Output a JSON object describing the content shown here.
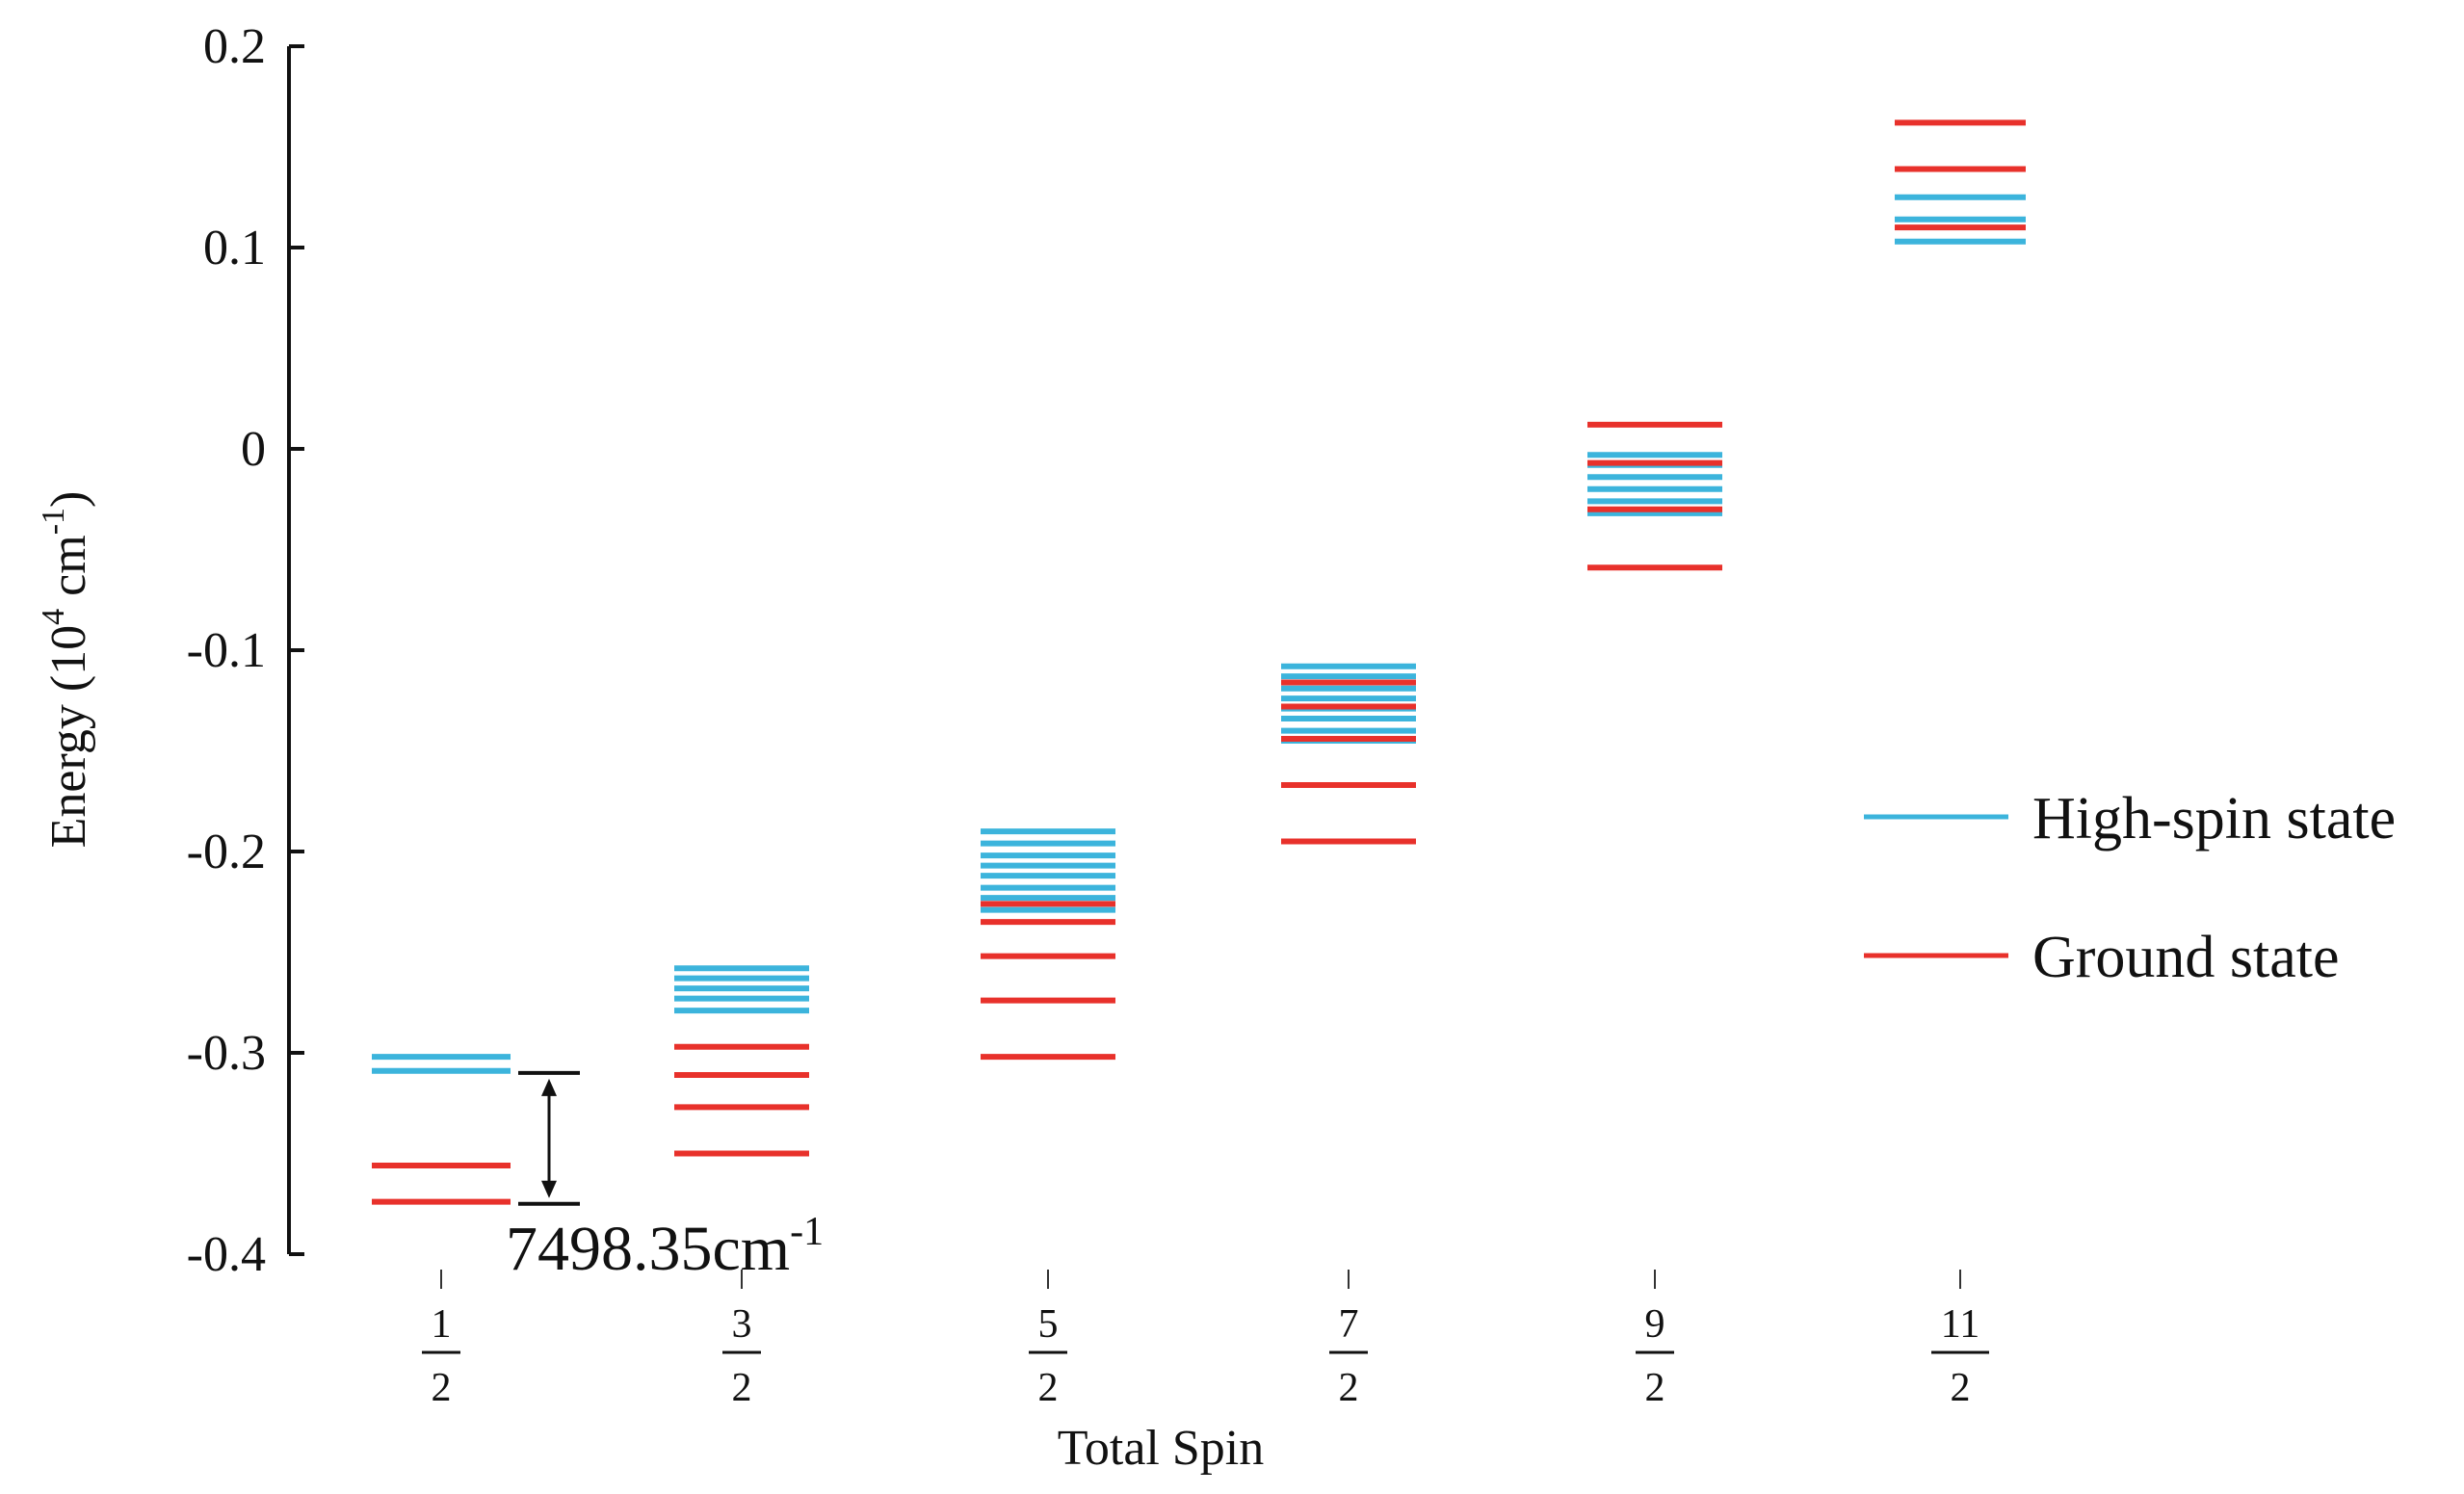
{
  "chart_data": {
    "type": "energy-level-diagram",
    "ylabel": "Energy (10",
    "ylabel_sup1": "4",
    "ylabel_mid": " cm",
    "ylabel_sup2": "-1",
    "ylabel_end": ")",
    "xlabel": "Total Spin",
    "ylim": [
      -0.4,
      0.2
    ],
    "yticks": [
      {
        "value": 0.2,
        "label": "0.2"
      },
      {
        "value": 0.1,
        "label": "0.1"
      },
      {
        "value": 0.0,
        "label": "0"
      },
      {
        "value": -0.1,
        "label": "-0.1"
      },
      {
        "value": -0.2,
        "label": "-0.2"
      },
      {
        "value": -0.3,
        "label": "-0.3"
      },
      {
        "value": -0.4,
        "label": "-0.4"
      }
    ],
    "categories": [
      {
        "num": "1",
        "den": "2"
      },
      {
        "num": "3",
        "den": "2"
      },
      {
        "num": "5",
        "den": "2"
      },
      {
        "num": "7",
        "den": "2"
      },
      {
        "num": "9",
        "den": "2"
      },
      {
        "num": "11",
        "den": "2"
      }
    ],
    "series": [
      {
        "name": "High-spin state",
        "color": "#3cb4dc",
        "levels": [
          [
            -0.302,
            -0.309
          ],
          [
            -0.258,
            -0.263,
            -0.268,
            -0.273,
            -0.279
          ],
          [
            -0.19,
            -0.196,
            -0.202,
            -0.207,
            -0.212,
            -0.218,
            -0.223,
            -0.229
          ],
          [
            -0.108,
            -0.113,
            -0.119,
            -0.124,
            -0.129,
            -0.134,
            -0.14,
            -0.145
          ],
          [
            -0.003,
            -0.008,
            -0.014,
            -0.02,
            -0.026,
            -0.032
          ],
          [
            0.103,
            0.114,
            0.125
          ]
        ]
      },
      {
        "name": "Ground state",
        "color": "#e8312b",
        "levels": [
          [
            -0.356,
            -0.374
          ],
          [
            -0.297,
            -0.311,
            -0.327,
            -0.35
          ],
          [
            -0.226,
            -0.235,
            -0.252,
            -0.274,
            -0.302
          ],
          [
            -0.116,
            -0.128,
            -0.144,
            -0.167,
            -0.195
          ],
          [
            0.012,
            -0.007,
            -0.03,
            -0.059
          ],
          [
            0.11,
            0.139,
            0.162
          ]
        ]
      }
    ],
    "annotation": {
      "text": "7498.35cm",
      "sup": "-1",
      "from": -0.31,
      "to": -0.375
    },
    "legend_position": "right"
  }
}
